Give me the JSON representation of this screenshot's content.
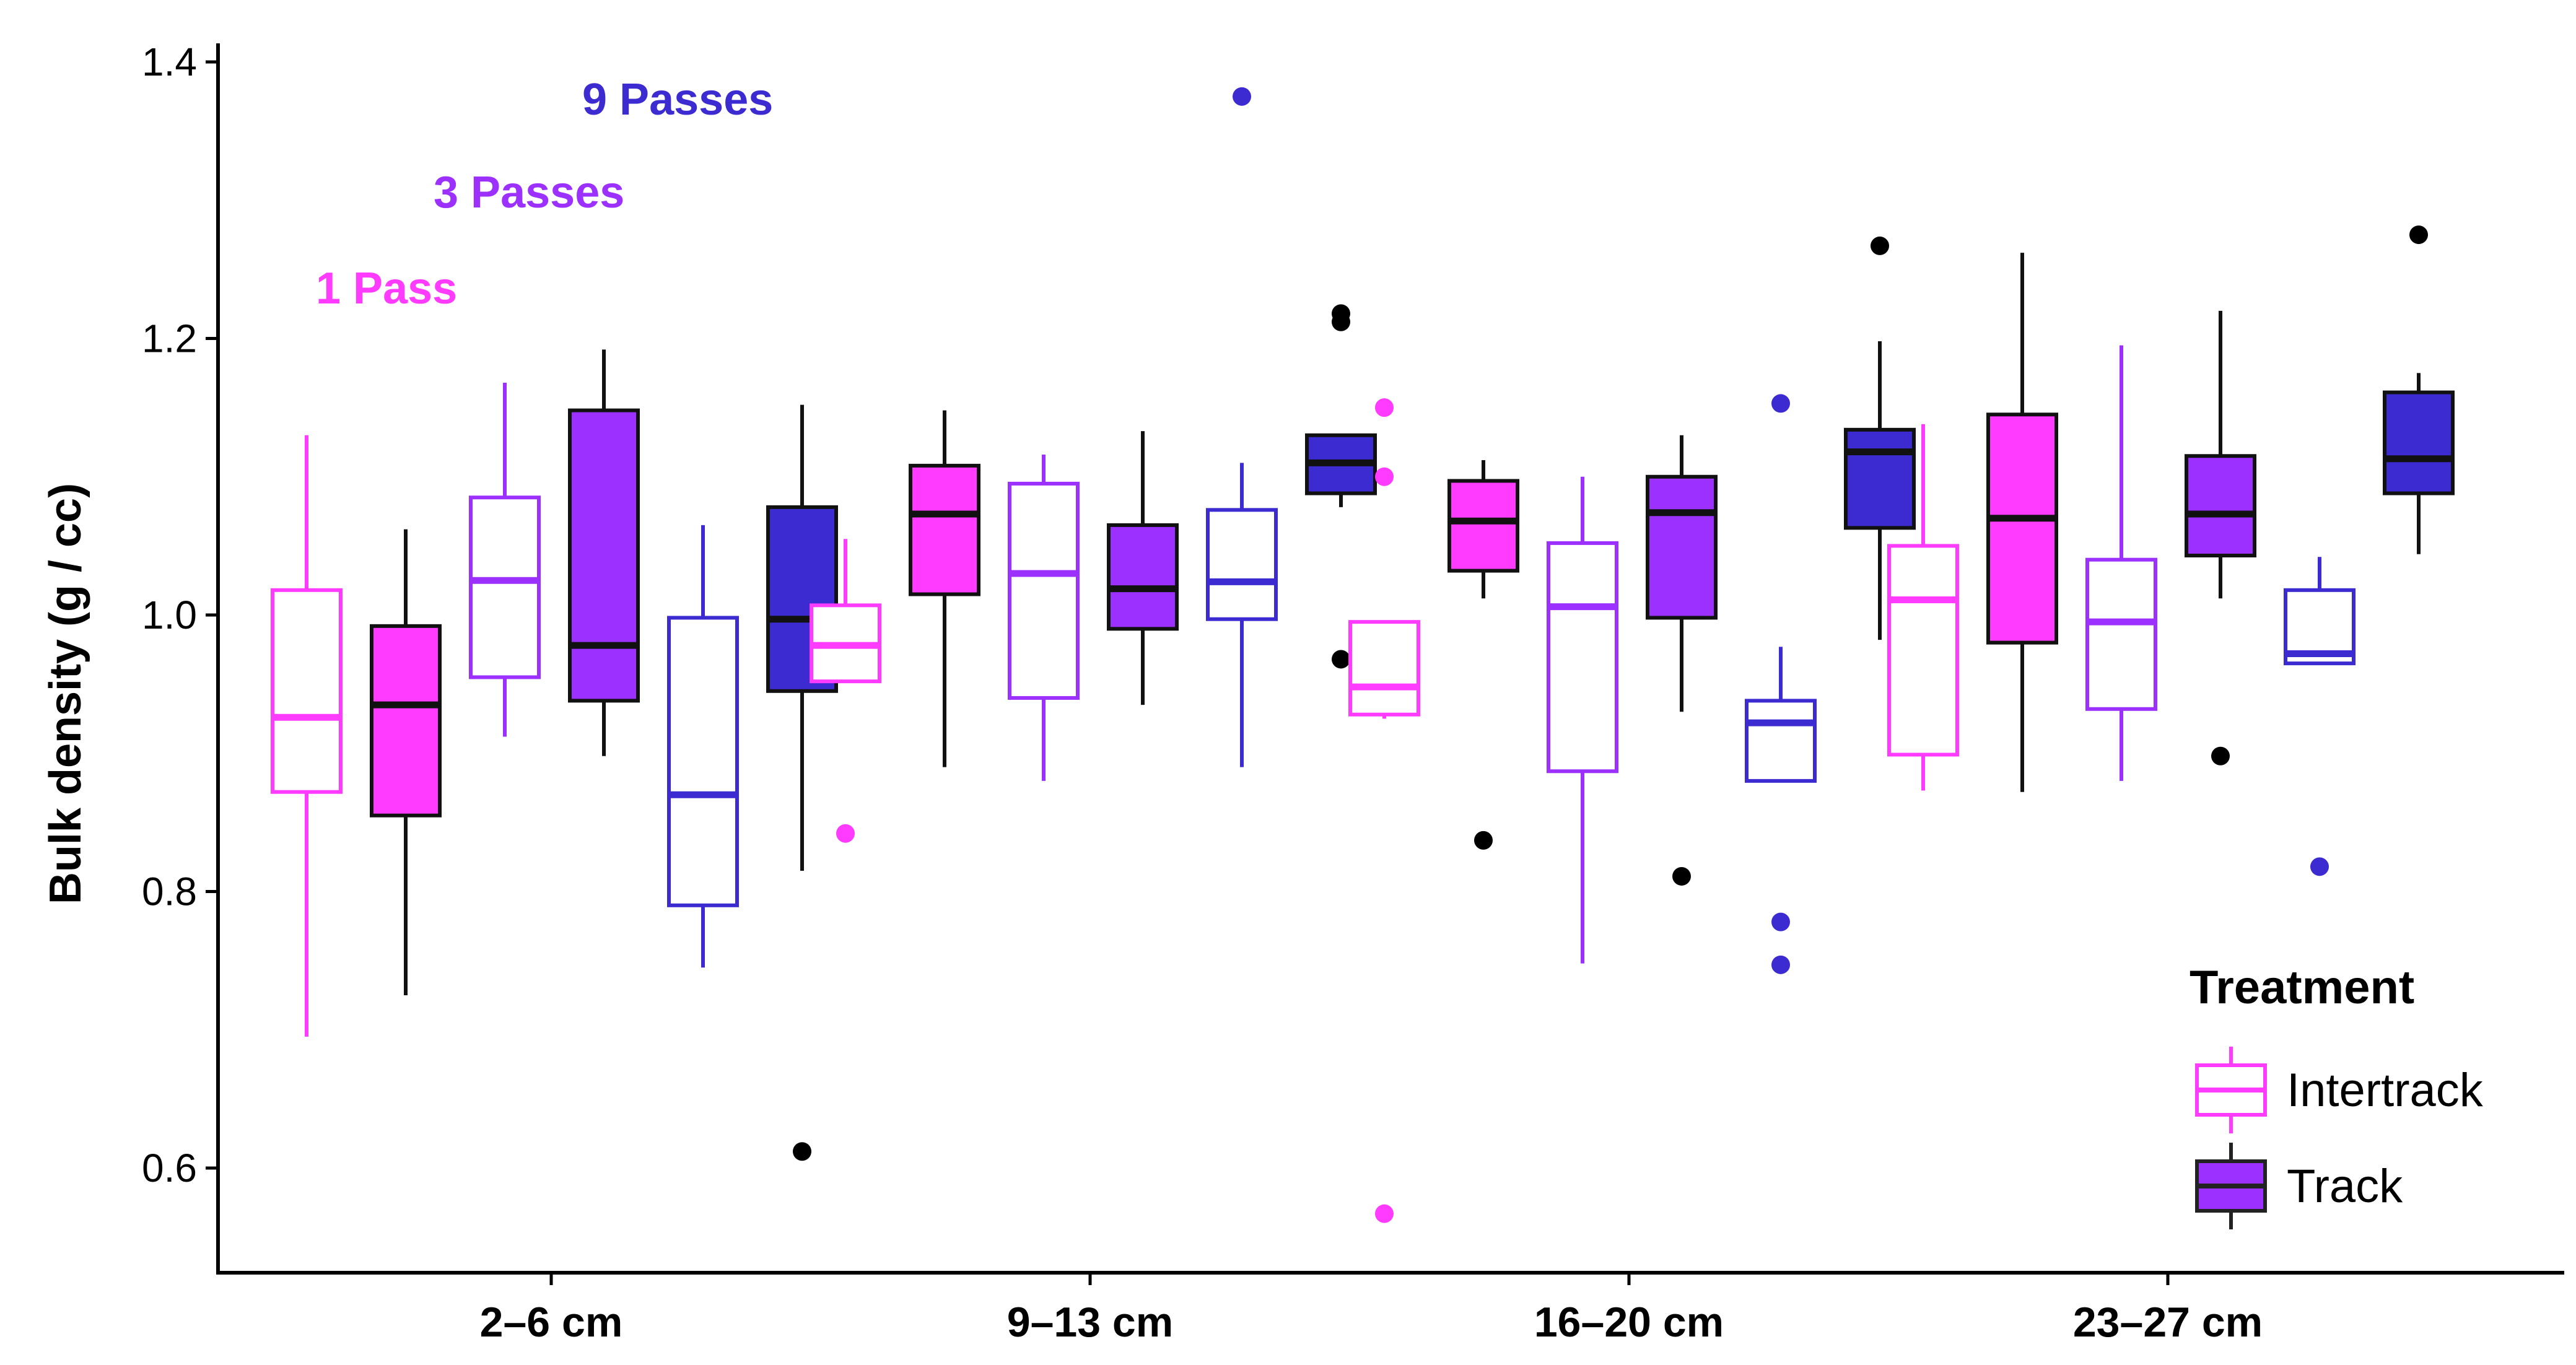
{
  "chart_data": {
    "type": "boxplot",
    "title": "",
    "xlabel": "",
    "ylabel": "Bulk density (g / cc)",
    "ylim": [
      0.53,
      1.42
    ],
    "yticks": [
      "0.6",
      "0.8",
      "1.0",
      "1.2",
      "1.4"
    ],
    "ytick_values": [
      0.6,
      0.8,
      1.0,
      1.2,
      1.4
    ],
    "categories": [
      "2–6 cm",
      "9–13 cm",
      "16–20 cm",
      "23–27 cm"
    ],
    "passes": [
      {
        "label": "1 Pass",
        "color": "#FF3BFF"
      },
      {
        "label": "3 Passes",
        "color": "#9B30FF"
      },
      {
        "label": "9 Passes",
        "color": "#3C2BD0"
      }
    ],
    "legend": {
      "title": "Treatment",
      "items": [
        {
          "label": "Intertrack",
          "fill": "#FFFFFF",
          "stroke": "#FF3BFF"
        },
        {
          "label": "Track",
          "fill": "#9B30FF",
          "stroke": "#222222"
        }
      ]
    },
    "boxes": [
      {
        "depth": "2–6 cm",
        "pass": "1 Pass",
        "treatment": "Intertrack",
        "whisker_low": 0.695,
        "q1": 0.872,
        "median": 0.926,
        "q3": 1.018,
        "whisker_high": 1.13,
        "outliers": []
      },
      {
        "depth": "2–6 cm",
        "pass": "1 Pass",
        "treatment": "Track",
        "whisker_low": 0.725,
        "q1": 0.855,
        "median": 0.935,
        "q3": 0.992,
        "whisker_high": 1.062,
        "outliers": []
      },
      {
        "depth": "2–6 cm",
        "pass": "3 Passes",
        "treatment": "Intertrack",
        "whisker_low": 0.912,
        "q1": 0.955,
        "median": 1.025,
        "q3": 1.085,
        "whisker_high": 1.168,
        "outliers": []
      },
      {
        "depth": "2–6 cm",
        "pass": "3 Passes",
        "treatment": "Track",
        "whisker_low": 0.898,
        "q1": 0.938,
        "median": 0.978,
        "q3": 1.148,
        "whisker_high": 1.192,
        "outliers": []
      },
      {
        "depth": "2–6 cm",
        "pass": "9 Passes",
        "treatment": "Intertrack",
        "whisker_low": 0.745,
        "q1": 0.79,
        "median": 0.87,
        "q3": 0.998,
        "whisker_high": 1.065,
        "outliers": []
      },
      {
        "depth": "2–6 cm",
        "pass": "9 Passes",
        "treatment": "Track",
        "whisker_low": 0.815,
        "q1": 0.945,
        "median": 0.997,
        "q3": 1.078,
        "whisker_high": 1.152,
        "outliers": [
          0.612
        ]
      },
      {
        "depth": "9–13 cm",
        "pass": "1 Pass",
        "treatment": "Intertrack",
        "whisker_low": 0.952,
        "q1": 0.952,
        "median": 0.978,
        "q3": 1.007,
        "whisker_high": 1.055,
        "outliers": [
          0.842
        ]
      },
      {
        "depth": "9–13 cm",
        "pass": "1 Pass",
        "treatment": "Track",
        "whisker_low": 0.89,
        "q1": 1.015,
        "median": 1.073,
        "q3": 1.108,
        "whisker_high": 1.148,
        "outliers": []
      },
      {
        "depth": "9–13 cm",
        "pass": "3 Passes",
        "treatment": "Intertrack",
        "whisker_low": 0.88,
        "q1": 0.94,
        "median": 1.03,
        "q3": 1.095,
        "whisker_high": 1.116,
        "outliers": []
      },
      {
        "depth": "9–13 cm",
        "pass": "3 Passes",
        "treatment": "Track",
        "whisker_low": 0.935,
        "q1": 0.99,
        "median": 1.019,
        "q3": 1.065,
        "whisker_high": 1.133,
        "outliers": []
      },
      {
        "depth": "9–13 cm",
        "pass": "9 Passes",
        "treatment": "Intertrack",
        "whisker_low": 0.89,
        "q1": 0.997,
        "median": 1.024,
        "q3": 1.076,
        "whisker_high": 1.11,
        "outliers": [
          1.375
        ]
      },
      {
        "depth": "9–13 cm",
        "pass": "9 Passes",
        "treatment": "Track",
        "whisker_low": 1.078,
        "q1": 1.088,
        "median": 1.11,
        "q3": 1.13,
        "whisker_high": 1.13,
        "outliers": [
          0.968,
          1.212,
          1.218
        ]
      },
      {
        "depth": "16–20 cm",
        "pass": "1 Pass",
        "treatment": "Intertrack",
        "whisker_low": 0.925,
        "q1": 0.928,
        "median": 0.948,
        "q3": 0.995,
        "whisker_high": 0.995,
        "outliers": [
          1.15,
          1.1,
          0.567
        ]
      },
      {
        "depth": "16–20 cm",
        "pass": "1 Pass",
        "treatment": "Track",
        "whisker_low": 1.012,
        "q1": 1.032,
        "median": 1.068,
        "q3": 1.097,
        "whisker_high": 1.112,
        "outliers": [
          0.837
        ]
      },
      {
        "depth": "16–20 cm",
        "pass": "3 Passes",
        "treatment": "Intertrack",
        "whisker_low": 0.748,
        "q1": 0.887,
        "median": 1.006,
        "q3": 1.052,
        "whisker_high": 1.1,
        "outliers": []
      },
      {
        "depth": "16–20 cm",
        "pass": "3 Passes",
        "treatment": "Track",
        "whisker_low": 0.93,
        "q1": 0.998,
        "median": 1.074,
        "q3": 1.1,
        "whisker_high": 1.13,
        "outliers": [
          0.811
        ]
      },
      {
        "depth": "16–20 cm",
        "pass": "9 Passes",
        "treatment": "Intertrack",
        "whisker_low": 0.88,
        "q1": 0.88,
        "median": 0.922,
        "q3": 0.938,
        "whisker_high": 0.977,
        "outliers": [
          1.153,
          0.778,
          0.747
        ]
      },
      {
        "depth": "16–20 cm",
        "pass": "9 Passes",
        "treatment": "Track",
        "whisker_low": 0.982,
        "q1": 1.063,
        "median": 1.118,
        "q3": 1.134,
        "whisker_high": 1.198,
        "outliers": [
          1.267
        ]
      },
      {
        "depth": "23–27 cm",
        "pass": "1 Pass",
        "treatment": "Intertrack",
        "whisker_low": 0.873,
        "q1": 0.899,
        "median": 1.011,
        "q3": 1.05,
        "whisker_high": 1.138,
        "outliers": []
      },
      {
        "depth": "23–27 cm",
        "pass": "1 Pass",
        "treatment": "Track",
        "whisker_low": 0.872,
        "q1": 0.98,
        "median": 1.07,
        "q3": 1.145,
        "whisker_high": 1.262,
        "outliers": []
      },
      {
        "depth": "23–27 cm",
        "pass": "3 Passes",
        "treatment": "Intertrack",
        "whisker_low": 0.88,
        "q1": 0.932,
        "median": 0.995,
        "q3": 1.04,
        "whisker_high": 1.195,
        "outliers": []
      },
      {
        "depth": "23–27 cm",
        "pass": "3 Passes",
        "treatment": "Track",
        "whisker_low": 1.012,
        "q1": 1.043,
        "median": 1.073,
        "q3": 1.115,
        "whisker_high": 1.22,
        "outliers": [
          0.898
        ]
      },
      {
        "depth": "23–27 cm",
        "pass": "9 Passes",
        "treatment": "Intertrack",
        "whisker_low": 0.965,
        "q1": 0.965,
        "median": 0.972,
        "q3": 1.018,
        "whisker_high": 1.042,
        "outliers": [
          0.818
        ]
      },
      {
        "depth": "23–27 cm",
        "pass": "9 Passes",
        "treatment": "Track",
        "whisker_low": 1.044,
        "q1": 1.088,
        "median": 1.113,
        "q3": 1.161,
        "whisker_high": 1.175,
        "outliers": [
          1.275
        ]
      }
    ]
  }
}
